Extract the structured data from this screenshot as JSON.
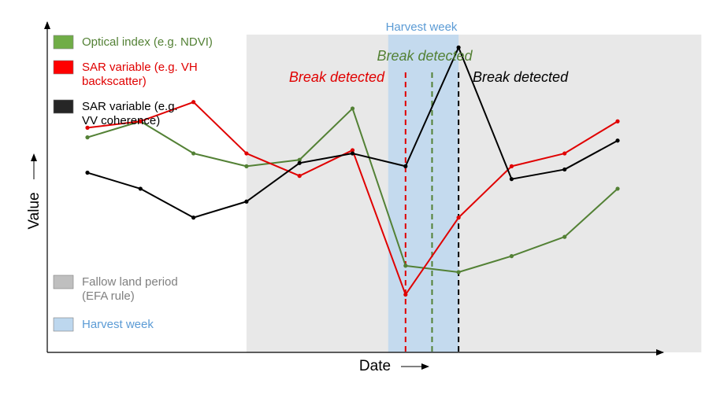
{
  "chart_data": {
    "type": "line",
    "title": "",
    "xlabel": "Date",
    "ylabel": "Value",
    "x": [
      1,
      2,
      3,
      4,
      5,
      6,
      7,
      8,
      9,
      10,
      11,
      12
    ],
    "ylim": [
      0,
      100
    ],
    "series": [
      {
        "name": "Optical index (e.g. NDVI)",
        "color": "#538135",
        "values": [
          67,
          72,
          62,
          58,
          60,
          76,
          27,
          25,
          30,
          36,
          51,
          null
        ]
      },
      {
        "name": "SAR variable (e.g. VH backscatter)",
        "color": "#e00000",
        "values": [
          70,
          72,
          78,
          62,
          55,
          63,
          18,
          42,
          58,
          62,
          72,
          null
        ]
      },
      {
        "name": "SAR variable (e.g. VV coherence)",
        "color": "#000000",
        "values": [
          56,
          51,
          42,
          47,
          59,
          62,
          58,
          95,
          54,
          57,
          66,
          null
        ]
      }
    ],
    "regions": [
      {
        "label": "Fallow land period (EFA rule)",
        "color": "#d9d9d9",
        "x_start": 4,
        "x_end": 12
      },
      {
        "label": "Harvest week",
        "color": "#bdd7ee",
        "x_start": 7,
        "x_end": 8
      }
    ],
    "annotations": {
      "harvest_week_label": "Harvest week",
      "breaks": [
        {
          "text": "Break detected",
          "color": "#e00000",
          "x": 7.0
        },
        {
          "text": "Break detected",
          "color": "#538135",
          "x": 7.5
        },
        {
          "text": "Break detected",
          "color": "#000000",
          "x": 8.0
        }
      ]
    },
    "legend": {
      "position": "top-left",
      "series_items": [
        {
          "lines": [
            "Optical index (e.g. NDVI)"
          ],
          "color": "#70ad47",
          "text_color": "#538135"
        },
        {
          "lines": [
            "SAR variable (e.g. VH",
            "backscatter)"
          ],
          "color": "#ff0000",
          "text_color": "#e00000"
        },
        {
          "lines": [
            "SAR variable (e.g.",
            "VV coherence)"
          ],
          "color": "#262626",
          "text_color": "#000000"
        }
      ],
      "region_items": [
        {
          "lines": [
            "Fallow land period",
            "(EFA rule)"
          ],
          "color": "#bfbfbf",
          "text_color": "#808080"
        },
        {
          "lines": [
            "Harvest week"
          ],
          "color": "#bdd7ee",
          "text_color": "#5b9bd5"
        }
      ]
    },
    "grid": false
  }
}
